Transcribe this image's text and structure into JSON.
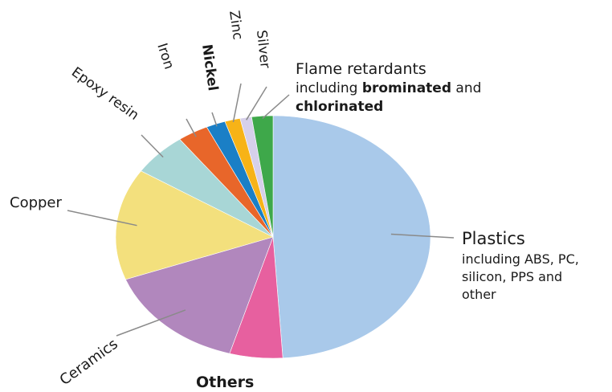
{
  "chart_data": {
    "type": "pie",
    "title": "",
    "start_angle_deg": 0,
    "direction": "clockwise",
    "slices": [
      {
        "key": "plastics",
        "label": "Plastics",
        "value": 49.5,
        "color": "#a9c9ea",
        "note": [
          "including ABS, PC,",
          "silicon, PPS and",
          "other"
        ]
      },
      {
        "key": "others",
        "label": "Others",
        "value": 5.5,
        "color": "#e7609f"
      },
      {
        "key": "ceramics",
        "label": "Ceramics",
        "value": 15.0,
        "color": "#b187bd"
      },
      {
        "key": "copper",
        "label": "Copper",
        "value": 15.0,
        "color": "#f3e07d"
      },
      {
        "key": "epoxy-resin",
        "label": "Epoxy resin",
        "value": 5.8,
        "color": "#a8d6d6"
      },
      {
        "key": "iron",
        "label": "Iron",
        "value": 3.2,
        "color": "#e8662a"
      },
      {
        "key": "nickel",
        "label": "Nickel",
        "value": 2.0,
        "color": "#1a7fc6"
      },
      {
        "key": "zinc",
        "label": "Zinc",
        "value": 1.6,
        "color": "#f7b317"
      },
      {
        "key": "silver",
        "label": "Silver",
        "value": 1.2,
        "color": "#d6d0ea"
      },
      {
        "key": "flame-retardants",
        "label": "Flame retardants",
        "value": 2.2,
        "color": "#3ea84a",
        "note_parts": [
          [
            {
              "t": "including ",
              "b": false
            },
            {
              "t": "brominated",
              "b": true
            },
            {
              "t": " and",
              "b": false
            }
          ],
          [
            {
              "t": "chlorinated",
              "b": true
            }
          ]
        ]
      }
    ]
  }
}
